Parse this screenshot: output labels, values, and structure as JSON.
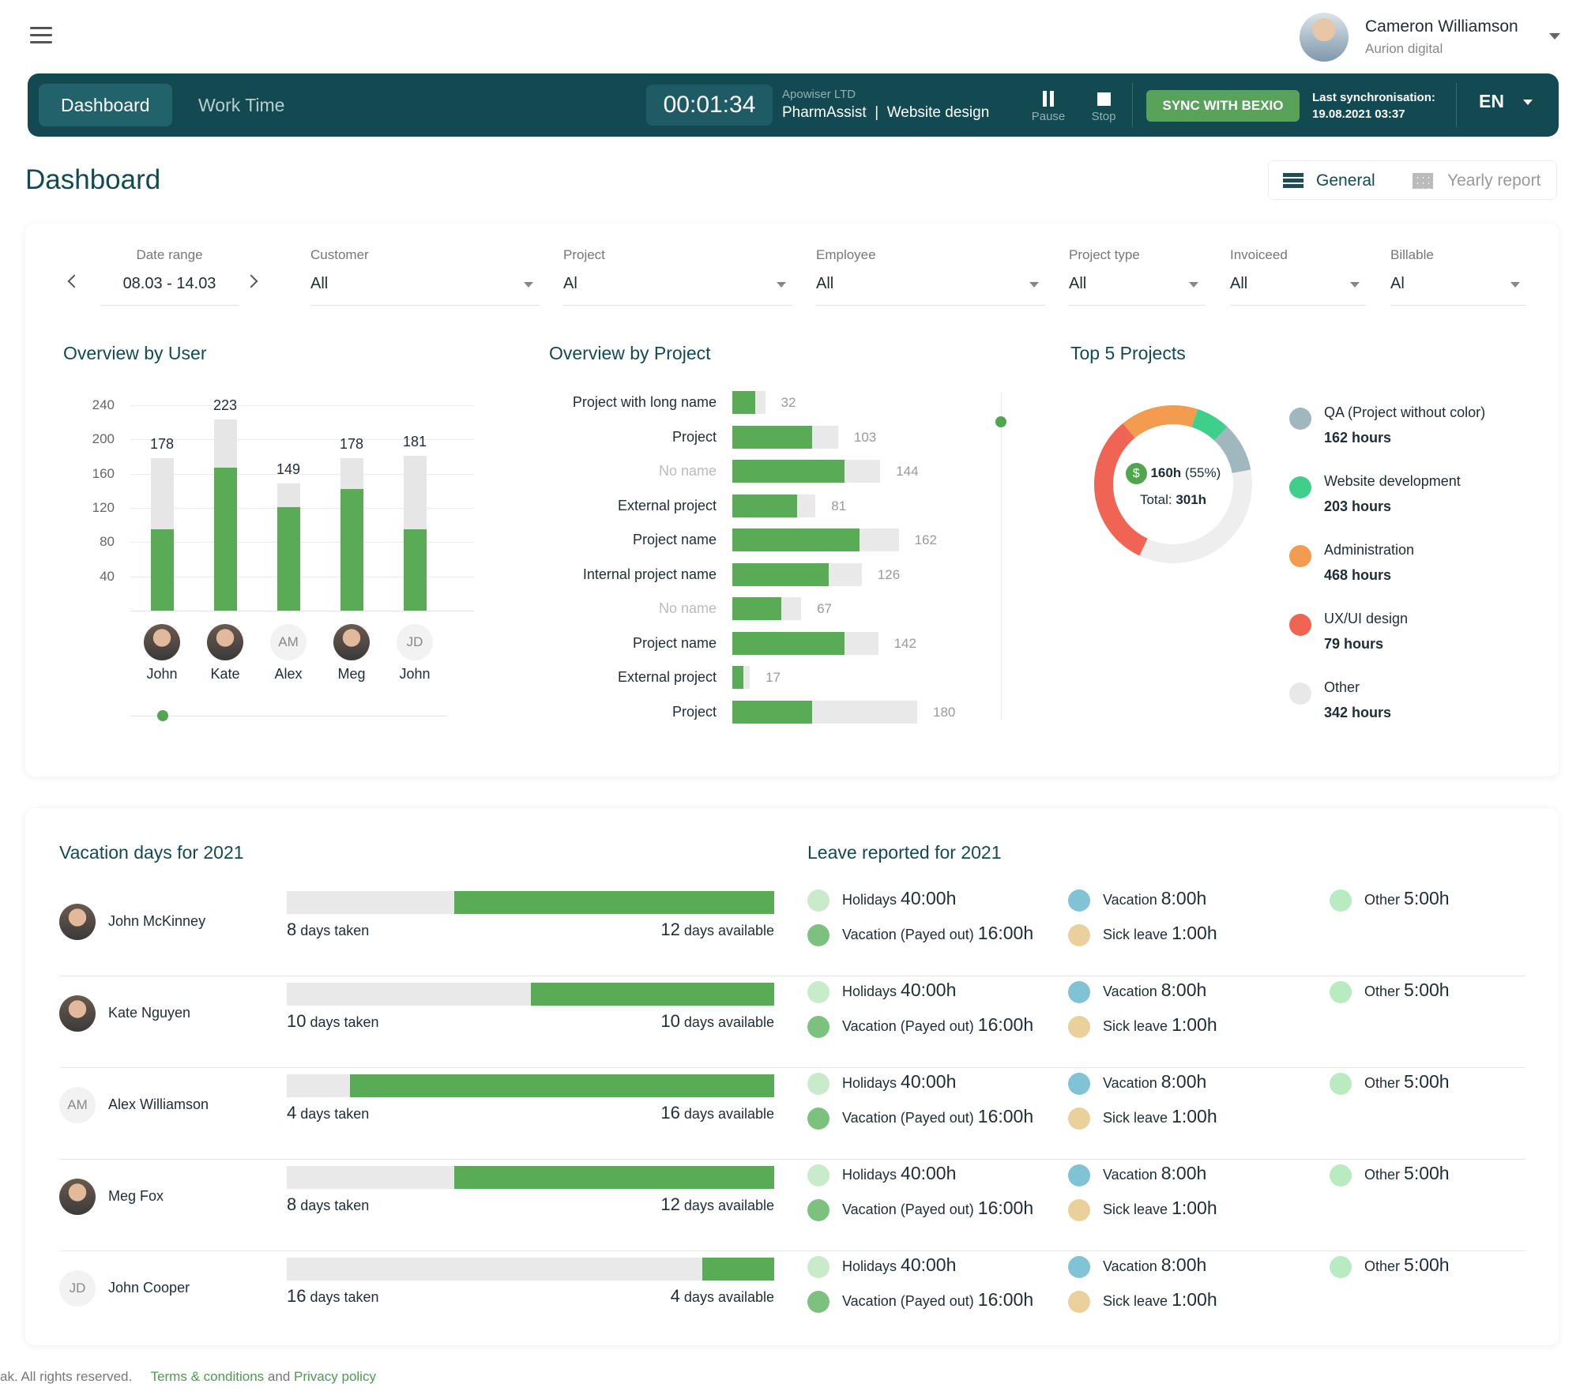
{
  "user": {
    "name": "Cameron Williamson",
    "company": "Aurion digital"
  },
  "topbar": {
    "tab_dashboard": "Dashboard",
    "tab_worktime": "Work Time",
    "timer": "00:01:34",
    "company": "Apowiser LTD",
    "project": "PharmAssist",
    "task": "Website design",
    "divider": "|",
    "pause": "Pause",
    "stop": "Stop",
    "sync": "SYNC WITH BEXIO",
    "last_sync_label": "Last synchronisation:",
    "last_sync_value": "19.08.2021 03:37",
    "lang": "EN"
  },
  "page": {
    "title": "Dashboard",
    "view_general": "General",
    "view_yearly": "Yearly report"
  },
  "filters": [
    {
      "label": "Date range",
      "value": "08.03 - 14.03"
    },
    {
      "label": "Customer",
      "value": "All"
    },
    {
      "label": "Project",
      "value": "Al"
    },
    {
      "label": "Employee",
      "value": "All"
    },
    {
      "label": "Project type",
      "value": "All"
    },
    {
      "label": "Invoiceed",
      "value": "All"
    },
    {
      "label": "Billable",
      "value": "Al"
    }
  ],
  "overview_user": {
    "title": "Overview by User",
    "y_ticks": [
      "240",
      "200",
      "160",
      "120",
      "80",
      "40"
    ],
    "users": [
      {
        "name": "John",
        "initials": "",
        "total": 178,
        "filled": 95,
        "label": "178"
      },
      {
        "name": "Kate",
        "initials": "",
        "total": 223,
        "filled": 167,
        "label": "223"
      },
      {
        "name": "Alex",
        "initials": "AM",
        "total": 149,
        "filled": 121,
        "label": "149"
      },
      {
        "name": "Meg",
        "initials": "",
        "total": 178,
        "filled": 142,
        "label": "178"
      },
      {
        "name": "John",
        "initials": "JD",
        "total": 181,
        "filled": 95,
        "label": "181"
      }
    ]
  },
  "overview_project": {
    "title": "Overview by Project",
    "projects": [
      {
        "name": "Project with long name",
        "total": 32,
        "filled": 22,
        "label": "32",
        "dim": false
      },
      {
        "name": "Project",
        "total": 103,
        "filled": 78,
        "label": "103",
        "dim": false
      },
      {
        "name": "No name",
        "total": 144,
        "filled": 109,
        "label": "144",
        "dim": true
      },
      {
        "name": "External project",
        "total": 81,
        "filled": 63,
        "label": "81",
        "dim": false
      },
      {
        "name": "Project name",
        "total": 162,
        "filled": 124,
        "label": "162",
        "dim": false
      },
      {
        "name": "Internal project name",
        "total": 126,
        "filled": 94,
        "label": "126",
        "dim": false
      },
      {
        "name": "No name",
        "total": 67,
        "filled": 48,
        "label": "67",
        "dim": true
      },
      {
        "name": "Project name",
        "total": 142,
        "filled": 109,
        "label": "142",
        "dim": false
      },
      {
        "name": "External project",
        "total": 17,
        "filled": 11,
        "label": "17",
        "dim": false
      },
      {
        "name": "Project",
        "total": 180,
        "filled": 78,
        "label": "180",
        "dim": false
      }
    ]
  },
  "top5": {
    "title": "Top 5 Projects",
    "center_hours": "160h",
    "center_pct": "(55%)",
    "total_label": "Total:",
    "total_value": "301h",
    "dollar": "$",
    "items": [
      {
        "name": "QA (Project without color)",
        "hours": "162 hours",
        "color": "#9fb7bd"
      },
      {
        "name": "Website development",
        "hours": "203 hours",
        "color": "#3ecf8a"
      },
      {
        "name": "Administration",
        "hours": "468 hours",
        "color": "#f39b4f"
      },
      {
        "name": "UX/UI design",
        "hours": "79 hours",
        "color": "#f06454"
      },
      {
        "name": "Other",
        "hours": "342 hours",
        "color": "#e8e8e8"
      }
    ]
  },
  "vacation": {
    "title": "Vacation days for 2021",
    "taken_suffix": "days taken",
    "avail_suffix": "days available",
    "people": [
      {
        "name": "John McKinney",
        "initials": "",
        "taken": "8",
        "available": "12",
        "avail_frac": 0.656
      },
      {
        "name": "Kate Nguyen",
        "initials": "",
        "taken": "10",
        "available": "10",
        "avail_frac": 0.5
      },
      {
        "name": "Alex Williamson",
        "initials": "AM",
        "taken": "4",
        "available": "16",
        "avail_frac": 0.87
      },
      {
        "name": "Meg Fox",
        "initials": "",
        "taken": "8",
        "available": "12",
        "avail_frac": 0.656
      },
      {
        "name": "John Cooper",
        "initials": "JD",
        "taken": "16",
        "available": "4",
        "avail_frac": 0.148
      }
    ]
  },
  "leave": {
    "title": "Leave reported for 2021",
    "items": [
      {
        "label": "Holidays",
        "value": "40:00h",
        "color": "#c8ecc9"
      },
      {
        "label": "Vacation (Payed out)",
        "value": "16:00h",
        "color": "#7cc27e"
      },
      {
        "label": "Vacation",
        "value": "8:00h",
        "color": "#7fc3d5"
      },
      {
        "label": "Sick leave",
        "value": "1:00h",
        "color": "#ead09a"
      },
      {
        "label": "Other",
        "value": "5:00h",
        "color": "#b8ecc0"
      }
    ]
  },
  "footer": {
    "rights": "ak. All rights reserved.",
    "terms": "Terms & conditions",
    "and": "and",
    "privacy": "Privacy policy"
  }
}
